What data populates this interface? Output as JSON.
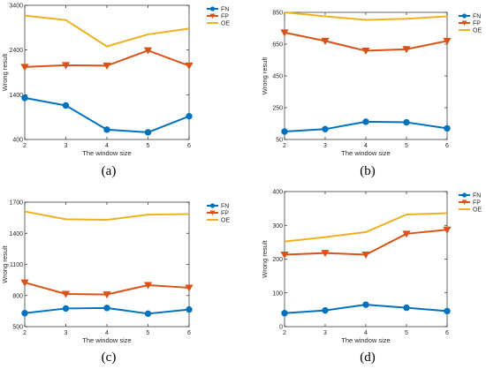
{
  "colors": {
    "FN": "#0072BD",
    "FP": "#D95319",
    "OE": "#EDB120",
    "axis": "#262626"
  },
  "legend_placement": "top-right, outside plot",
  "grid": false,
  "chart_data": [
    {
      "panel": "(a)",
      "type": "line",
      "x": [
        2,
        3,
        4,
        5,
        6
      ],
      "xlabel": "The window size",
      "ylabel": "Wrong result",
      "xlim": [
        2,
        6
      ],
      "ylim": [
        400,
        3400
      ],
      "yticks": [
        400,
        1400,
        2400,
        3400
      ],
      "series": [
        {
          "name": "FN",
          "marker": "circle",
          "values": [
            1330,
            1160,
            620,
            560,
            920
          ]
        },
        {
          "name": "FP",
          "marker": "triangle-down",
          "values": [
            2020,
            2060,
            2050,
            2390,
            2050
          ]
        },
        {
          "name": "OE",
          "marker": "none",
          "values": [
            3170,
            3070,
            2480,
            2750,
            2880
          ]
        }
      ]
    },
    {
      "panel": "(b)",
      "type": "line",
      "x": [
        2,
        3,
        4,
        5,
        6
      ],
      "xlabel": "The window size",
      "ylabel": "Wrong result",
      "xlim": [
        2,
        6
      ],
      "ylim": [
        50,
        850
      ],
      "yticks": [
        50,
        250,
        450,
        650,
        850
      ],
      "series": [
        {
          "name": "FN",
          "marker": "circle",
          "values": [
            100,
            115,
            162,
            158,
            120
          ]
        },
        {
          "name": "FP",
          "marker": "triangle-down",
          "values": [
            723,
            670,
            608,
            618,
            670
          ]
        },
        {
          "name": "OE",
          "marker": "none",
          "values": [
            850,
            825,
            803,
            810,
            825
          ]
        }
      ]
    },
    {
      "panel": "(c)",
      "type": "line",
      "x": [
        2,
        3,
        4,
        5,
        6
      ],
      "xlabel": "The window size",
      "ylabel": "Wrong result",
      "xlim": [
        2,
        6
      ],
      "ylim": [
        500,
        1700
      ],
      "yticks": [
        500,
        800,
        1100,
        1400,
        1700
      ],
      "series": [
        {
          "name": "FN",
          "marker": "circle",
          "values": [
            630,
            675,
            680,
            625,
            665
          ]
        },
        {
          "name": "FP",
          "marker": "triangle-down",
          "values": [
            925,
            815,
            810,
            900,
            875
          ]
        },
        {
          "name": "OE",
          "marker": "none",
          "values": [
            1610,
            1535,
            1530,
            1580,
            1585
          ]
        }
      ]
    },
    {
      "panel": "(d)",
      "type": "line",
      "x": [
        2,
        3,
        4,
        5,
        6
      ],
      "xlabel": "The window size",
      "ylabel": "Wrong result",
      "xlim": [
        2,
        6
      ],
      "ylim": [
        0,
        400
      ],
      "yticks": [
        0,
        100,
        200,
        300,
        400
      ],
      "series": [
        {
          "name": "FN",
          "marker": "circle",
          "values": [
            40,
            48,
            65,
            56,
            46
          ]
        },
        {
          "name": "FP",
          "marker": "triangle-down",
          "values": [
            213,
            218,
            213,
            275,
            287
          ]
        },
        {
          "name": "OE",
          "marker": "none",
          "values": [
            252,
            265,
            280,
            332,
            336
          ]
        }
      ]
    }
  ]
}
